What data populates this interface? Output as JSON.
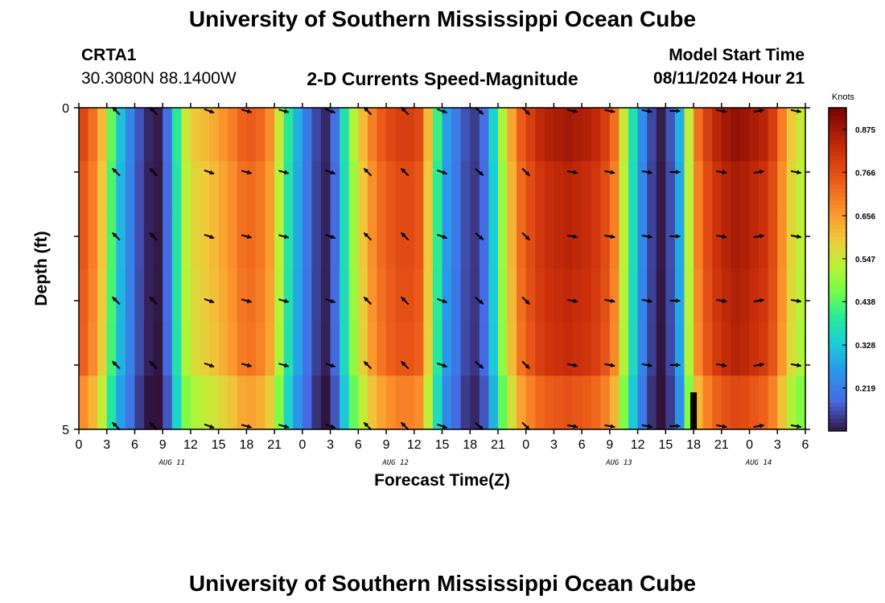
{
  "header": {
    "title": "University of Southern Mississippi Ocean Cube",
    "station_id": "CRTA1",
    "station_coords": "30.3080N  88.1400W",
    "product": "2-D Currents Speed-Magnitude",
    "model_start_label": "Model Start Time",
    "model_start_value": "08/11/2024 Hour 21"
  },
  "footer": {
    "title": "University of Southern Mississippi Ocean Cube"
  },
  "chart_data": {
    "type": "heatmap",
    "title": "2-D Currents Speed-Magnitude",
    "xlabel": "Forecast Time(Z)",
    "ylabel": "Depth (ft)",
    "x_unit": "hours since 08/11 00Z",
    "x_range": [
      0,
      78
    ],
    "y_range": [
      0,
      5
    ],
    "y_ticks": [
      "0",
      "5"
    ],
    "x_ticks": [
      {
        "h": 0,
        "label": "0"
      },
      {
        "h": 3,
        "label": "3"
      },
      {
        "h": 6,
        "label": "6"
      },
      {
        "h": 9,
        "label": "9"
      },
      {
        "h": 12,
        "label": "12"
      },
      {
        "h": 15,
        "label": "15"
      },
      {
        "h": 18,
        "label": "18"
      },
      {
        "h": 21,
        "label": "21"
      },
      {
        "h": 24,
        "label": "0"
      },
      {
        "h": 27,
        "label": "3"
      },
      {
        "h": 30,
        "label": "6"
      },
      {
        "h": 33,
        "label": "9"
      },
      {
        "h": 36,
        "label": "12"
      },
      {
        "h": 39,
        "label": "15"
      },
      {
        "h": 42,
        "label": "18"
      },
      {
        "h": 45,
        "label": "21"
      },
      {
        "h": 48,
        "label": "0"
      },
      {
        "h": 51,
        "label": "3"
      },
      {
        "h": 54,
        "label": "6"
      },
      {
        "h": 57,
        "label": "9"
      },
      {
        "h": 60,
        "label": "12"
      },
      {
        "h": 63,
        "label": "15"
      },
      {
        "h": 66,
        "label": "18"
      },
      {
        "h": 69,
        "label": "21"
      },
      {
        "h": 72,
        "label": "0"
      },
      {
        "h": 75,
        "label": "3"
      },
      {
        "h": 78,
        "label": "6"
      }
    ],
    "date_labels": [
      {
        "h": 10,
        "label": "AUG 11"
      },
      {
        "h": 34,
        "label": "AUG 12"
      },
      {
        "h": 58,
        "label": "AUG 13"
      },
      {
        "h": 73,
        "label": "AUG 14"
      }
    ],
    "colorbar": {
      "unit": "Knots",
      "min": 0.11,
      "max": 0.93,
      "ticks": [
        0.875,
        0.766,
        0.656,
        0.547,
        0.438,
        0.328,
        0.219
      ]
    },
    "speed_profile": {
      "hours": [
        0,
        1,
        2,
        3,
        4,
        5,
        6,
        7,
        8,
        9,
        10,
        11,
        12,
        13,
        14,
        15,
        16,
        17,
        18,
        19,
        20,
        21,
        22,
        23,
        24,
        25,
        26,
        27,
        28,
        29,
        30,
        31,
        32,
        33,
        34,
        35,
        36,
        37,
        38,
        39,
        40,
        41,
        42,
        43,
        44,
        45,
        46,
        47,
        48,
        49,
        50,
        51,
        52,
        53,
        54,
        55,
        56,
        57,
        58,
        59,
        60,
        61,
        62,
        63,
        64,
        65,
        66,
        67,
        68,
        69,
        70,
        71,
        72,
        73,
        74,
        75,
        76,
        77,
        78
      ],
      "speed_knots": [
        0.78,
        0.72,
        0.62,
        0.45,
        0.32,
        0.24,
        0.17,
        0.13,
        0.12,
        0.2,
        0.4,
        0.55,
        0.6,
        0.62,
        0.64,
        0.67,
        0.7,
        0.74,
        0.75,
        0.73,
        0.68,
        0.55,
        0.4,
        0.3,
        0.22,
        0.16,
        0.13,
        0.2,
        0.38,
        0.52,
        0.62,
        0.7,
        0.75,
        0.78,
        0.8,
        0.8,
        0.78,
        0.62,
        0.42,
        0.28,
        0.22,
        0.17,
        0.15,
        0.2,
        0.35,
        0.52,
        0.65,
        0.75,
        0.8,
        0.84,
        0.86,
        0.87,
        0.88,
        0.87,
        0.86,
        0.84,
        0.8,
        0.72,
        0.55,
        0.38,
        0.25,
        0.16,
        0.12,
        0.17,
        0.3,
        0.55,
        0.72,
        0.8,
        0.85,
        0.88,
        0.9,
        0.89,
        0.87,
        0.85,
        0.8,
        0.7,
        0.6,
        0.55,
        0.5
      ],
      "depth_weights": [
        1.0,
        0.97,
        0.97,
        0.96,
        0.95,
        0.87
      ]
    },
    "arrows": {
      "hours": [
        4,
        8,
        14,
        18,
        22,
        27,
        31,
        35,
        39,
        43,
        48,
        53,
        57,
        61,
        64,
        69,
        73,
        77
      ],
      "dirs_deg": [
        135,
        135,
        -20,
        -15,
        -15,
        -20,
        135,
        135,
        -20,
        -40,
        -45,
        -10,
        -10,
        -10,
        0,
        -10,
        10,
        -10
      ]
    },
    "annotations": {
      "dark_bar": {
        "h": 66,
        "depth_from": 4.5,
        "depth_to": 5
      }
    }
  }
}
